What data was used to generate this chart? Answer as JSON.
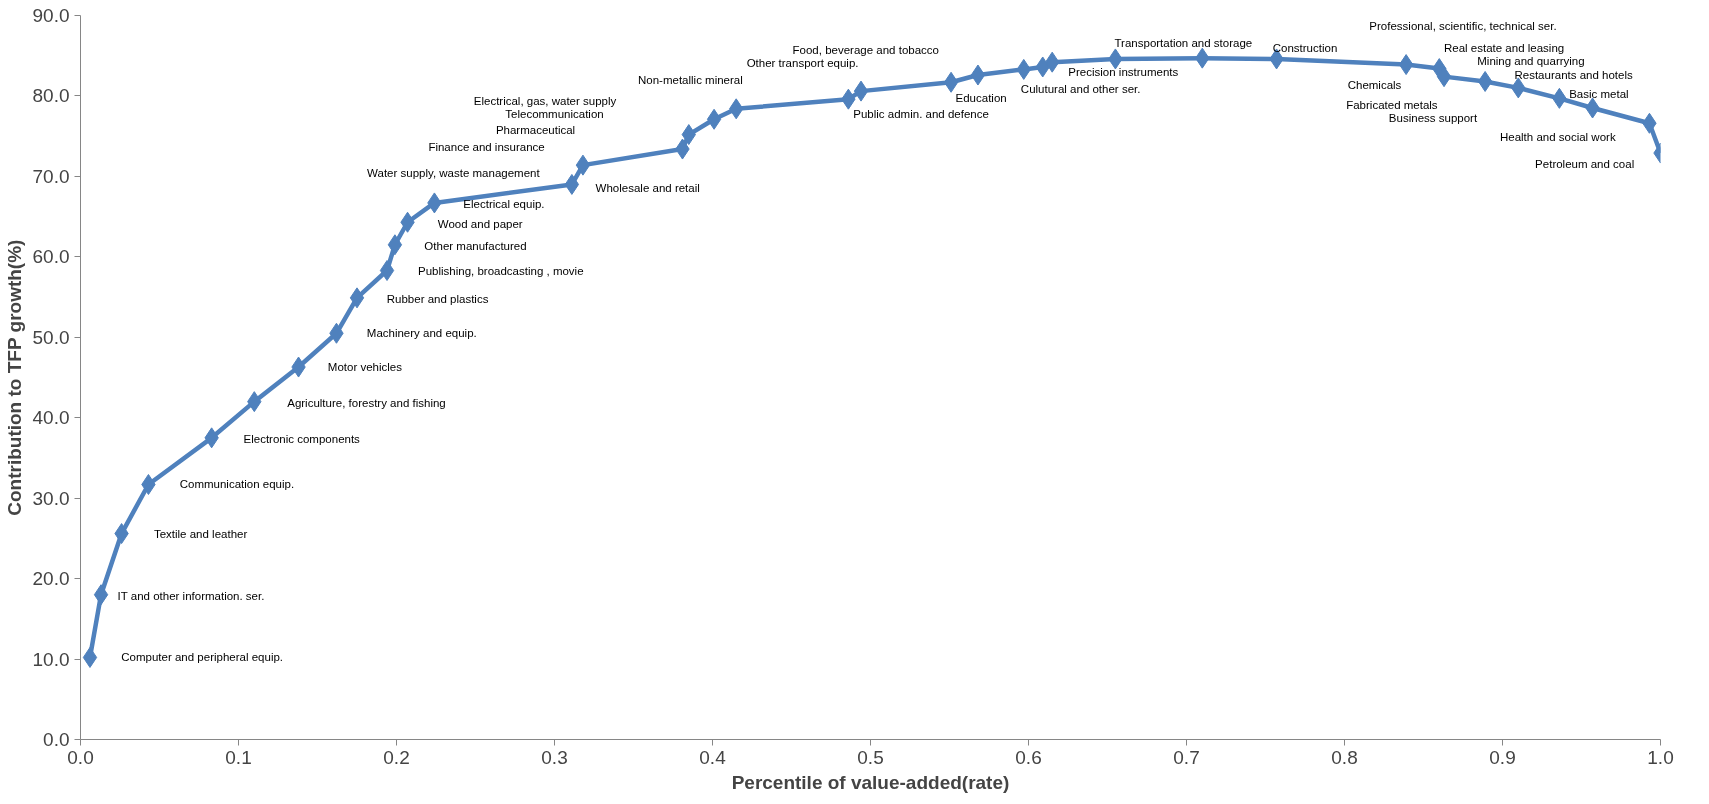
{
  "chart_data": {
    "type": "line",
    "xlabel": "Percentile of value-added(rate)",
    "ylabel": "Contribution to TFP growth(%)",
    "x": [
      0.006,
      0.013,
      0.026,
      0.043,
      0.083,
      0.11,
      0.138,
      0.162,
      0.175,
      0.194,
      0.199,
      0.207,
      0.224,
      0.311,
      0.318,
      0.381,
      0.385,
      0.401,
      0.415,
      0.486,
      0.494,
      0.551,
      0.568,
      0.597,
      0.609,
      0.615,
      0.655,
      0.71,
      0.757,
      0.839,
      0.86,
      0.863,
      0.889,
      0.91,
      0.936,
      0.957,
      0.993,
      1.0
    ],
    "series": [
      {
        "color": "#4f81bd",
        "values": [
          10.2,
          18.0,
          25.6,
          31.7,
          37.5,
          42.0,
          46.3,
          50.5,
          54.9,
          58.3,
          61.5,
          64.3,
          66.7,
          69.0,
          71.4,
          73.4,
          75.2,
          77.1,
          78.4,
          79.6,
          80.6,
          81.7,
          82.6,
          83.3,
          83.6,
          84.2,
          84.6,
          84.7,
          84.6,
          83.9,
          83.4,
          82.4,
          81.8,
          81.0,
          79.7,
          78.5,
          76.6,
          72.9
        ]
      }
    ],
    "marker": "diamond",
    "line_style": "solid",
    "grid": false,
    "xlim": [
      0,
      1
    ],
    "ylim": [
      0,
      90
    ],
    "xticks": [
      {
        "value": 0,
        "label": "0.0"
      },
      0.1,
      0.2,
      0.3,
      0.4,
      0.5,
      0.6,
      0.7,
      0.8,
      0.9,
      {
        "value": 1,
        "label": "1.0"
      }
    ],
    "yticks": [
      {
        "value": 0,
        "label": "0.0"
      },
      {
        "value": 10,
        "label": "10.0"
      },
      {
        "value": 20,
        "label": "20.0"
      },
      {
        "value": 30,
        "label": "30.0"
      },
      {
        "value": 40,
        "label": "40.0"
      },
      {
        "value": 50,
        "label": "50.0"
      },
      {
        "value": 60,
        "label": "60.0"
      },
      {
        "value": 70,
        "label": "70.0"
      },
      {
        "value": 80,
        "label": "80.0"
      },
      {
        "value": 90,
        "label": "90.0"
      }
    ],
    "annotations": [
      "Computer and peripheral equip.",
      "IT and other information. ser.",
      "Textile and leather",
      "Communication equip.",
      "Electronic components",
      "Agriculture, forestry and fishing",
      "Motor vehicles",
      "Machinery and equip.",
      "Rubber and plastics",
      "Publishing, broadcasting , movie",
      "Other manufactured",
      "Wood and paper",
      "Electrical equip.",
      "Water supply, waste management",
      "Wholesale and retail",
      "Finance and insurance",
      "Pharmaceutical",
      "Telecommunication",
      "Electrical, gas, water supply",
      "Non-metallic mineral",
      "Other transport equip.",
      "Food, beverage and tobacco",
      "Public admin. and defence",
      "Education",
      "Culutural and other ser.",
      "Precision instruments",
      "Transportation and storage",
      "Construction",
      "Chemicals",
      "Professional, scientific, technical ser.",
      "Real estate and leasing",
      "Fabricated metals",
      "Business support",
      "Mining and quarrying",
      "Restaurants and hotels",
      "Basic metal",
      "Health and social work",
      "Petroleum and coal"
    ]
  }
}
